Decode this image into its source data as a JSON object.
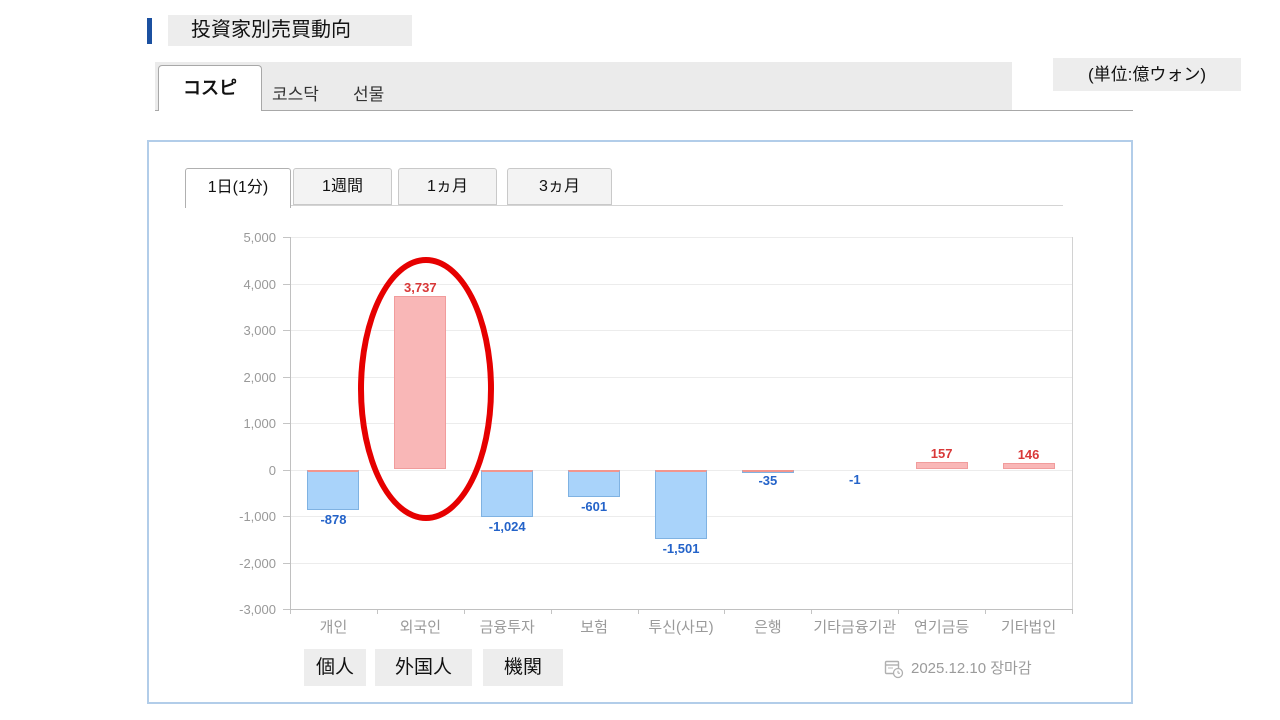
{
  "page": {
    "title": "投資家別売買動向",
    "unit_label": "(単位:億ウォン)",
    "accent_color": "#1b50a0"
  },
  "market_tabs": [
    {
      "label": "コスピ",
      "active": true
    },
    {
      "label": "코스닥",
      "active": false
    },
    {
      "label": "선물",
      "active": false
    }
  ],
  "period_tabs": [
    {
      "label": "1日(1分)",
      "active": true
    },
    {
      "label": "1週間",
      "active": false
    },
    {
      "label": "1ヵ月",
      "active": false
    },
    {
      "label": "3ヵ月",
      "active": false
    }
  ],
  "overlay_labels": [
    "個人",
    "外国人",
    "機関"
  ],
  "footer": {
    "icon": "calendar-clock-icon",
    "date_text": "2025.12.10 장마감"
  },
  "chart_data": {
    "type": "bar",
    "categories": [
      "개인",
      "외국인",
      "금융투자",
      "보험",
      "투신(사모)",
      "은행",
      "기타금융기관",
      "연기금등",
      "기타법인"
    ],
    "values": [
      -878,
      3737,
      -1024,
      -601,
      -1501,
      -35,
      -1,
      157,
      146
    ],
    "value_labels": [
      "-878",
      "3,737",
      "-1,024",
      "-601",
      "-1,501",
      "-35",
      "-1",
      "157",
      "146"
    ],
    "ylim": [
      -3000,
      5000
    ],
    "y_tick_step": 1000,
    "y_tick_labels": [
      "5,000",
      "4,000",
      "3,000",
      "2,000",
      "1,000",
      "0",
      "-1,000",
      "-2,000",
      "-3,000"
    ],
    "grid": true,
    "xlabel": "",
    "ylabel": "",
    "annotation": {
      "type": "ellipse",
      "category": "외국인",
      "color": "#e60000"
    },
    "colors": {
      "positive_fill": "#f9b7b7",
      "positive_border": "#f19c9c",
      "negative_fill": "#a9d3fa",
      "negative_border": "#7fb2e2",
      "zero_cap": "#f2968e",
      "positive_label": "#d93838",
      "negative_label": "#2463c9"
    }
  }
}
